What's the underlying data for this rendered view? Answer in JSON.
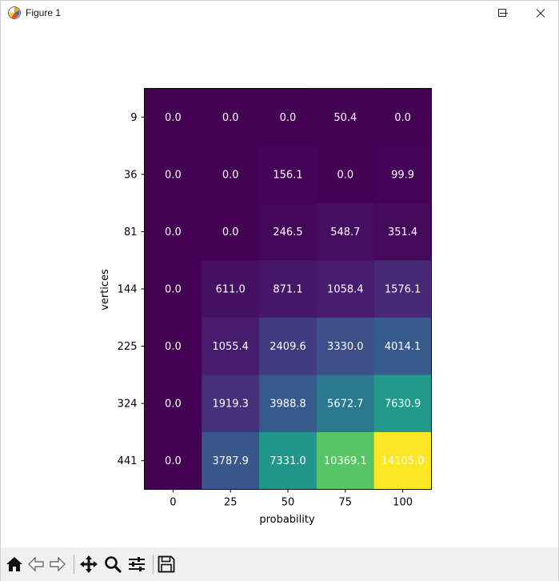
{
  "window": {
    "title": "Figure 1",
    "icons": [
      "app-logo-icon",
      "minimize-icon",
      "maximize-icon",
      "close-icon"
    ]
  },
  "toolbar": {
    "buttons": [
      "home-icon",
      "back-icon",
      "forward-icon",
      "pan-icon",
      "zoom-icon",
      "configure-subplots-icon",
      "save-icon"
    ]
  },
  "chart_data": {
    "type": "heatmap",
    "colormap": "viridis",
    "xlabel": "probability",
    "ylabel": "vertices",
    "x_ticks": [
      "0",
      "25",
      "50",
      "75",
      "100"
    ],
    "y_ticks": [
      "9",
      "36",
      "81",
      "144",
      "225",
      "324",
      "441"
    ],
    "value_range": [
      0.0,
      14105.0
    ],
    "cells": [
      [
        0.0,
        0.0,
        0.0,
        50.4,
        0.0
      ],
      [
        0.0,
        0.0,
        156.1,
        0.0,
        99.9
      ],
      [
        0.0,
        0.0,
        246.5,
        548.7,
        351.4
      ],
      [
        0.0,
        611.0,
        871.1,
        1058.4,
        1576.1
      ],
      [
        0.0,
        1055.4,
        2409.6,
        3330.0,
        4014.1
      ],
      [
        0.0,
        1919.3,
        3988.8,
        5672.7,
        7630.9
      ],
      [
        0.0,
        3787.9,
        7331.0,
        10369.1,
        14105.0
      ]
    ],
    "cell_labels": [
      [
        "0.0",
        "0.0",
        "0.0",
        "50.4",
        "0.0"
      ],
      [
        "0.0",
        "0.0",
        "156.1",
        "0.0",
        "99.9"
      ],
      [
        "0.0",
        "0.0",
        "246.5",
        "548.7",
        "351.4"
      ],
      [
        "0.0",
        "611.0",
        "871.1",
        "1058.4",
        "1576.1"
      ],
      [
        "0.0",
        "1055.4",
        "2409.6",
        "3330.0",
        "4014.1"
      ],
      [
        "0.0",
        "1919.3",
        "3988.8",
        "5672.7",
        "7630.9"
      ],
      [
        "0.0",
        "3787.9",
        "7331.0",
        "10369.1",
        "14105.0"
      ]
    ]
  }
}
